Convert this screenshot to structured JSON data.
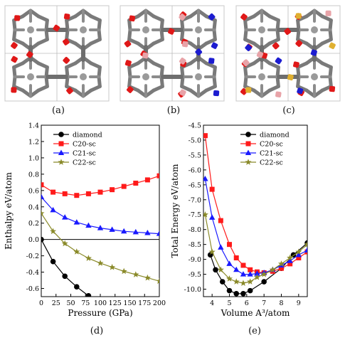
{
  "figure": {
    "captions": [
      "(a)",
      "(b)",
      "(c)",
      "(d)",
      "(e)"
    ]
  },
  "structure_panels": [
    {
      "label": "(a)",
      "atoms": [
        "grey-carbon",
        "red"
      ]
    },
    {
      "label": "(b)",
      "atoms": [
        "grey-carbon",
        "red",
        "blue",
        "pink"
      ]
    },
    {
      "label": "(c)",
      "atoms": [
        "grey-carbon",
        "red",
        "blue",
        "pink",
        "gold"
      ]
    }
  ],
  "colors": {
    "carbon": "#7a7a7a",
    "red": "#e01818",
    "blue": "#1c1cd0",
    "pink": "#e8a3a8",
    "gold": "#e0b030",
    "diamond": "#000000",
    "c20": "#ff1a1a",
    "c21": "#1a1aff",
    "c22": "#8a8a2a"
  },
  "chart_data": [
    {
      "type": "line",
      "panel": "(d)",
      "xlabel": "Pressure (GPa)",
      "ylabel": "Enthalpy eV/atom",
      "xlim": [
        0,
        200
      ],
      "ylim": [
        -0.7,
        1.4
      ],
      "xticks": [
        "0",
        "25",
        "50",
        "75",
        "100",
        "125",
        "150",
        "175",
        "200"
      ],
      "yticks": [
        "-0.6",
        "-0.4",
        "-0.2",
        "0.0",
        "0.2",
        "0.4",
        "0.6",
        "0.8",
        "1.0",
        "1.2",
        "1.4"
      ],
      "reference_line_y": 0,
      "legend_position": "top-left",
      "series": [
        {
          "name": "diamond",
          "marker": "circle",
          "color": "#000000",
          "x": [
            0,
            20,
            40,
            60,
            80
          ],
          "y": [
            0.0,
            -0.27,
            -0.45,
            -0.58,
            -0.69
          ]
        },
        {
          "name": "C20-sc",
          "marker": "square",
          "color": "#ff1a1a",
          "x": [
            0,
            20,
            40,
            60,
            80,
            100,
            120,
            140,
            160,
            180,
            200
          ],
          "y": [
            0.67,
            0.58,
            0.56,
            0.54,
            0.56,
            0.58,
            0.61,
            0.65,
            0.69,
            0.73,
            0.78
          ]
        },
        {
          "name": "C21-sc",
          "marker": "triangle",
          "color": "#1a1aff",
          "x": [
            0,
            20,
            40,
            60,
            80,
            100,
            120,
            140,
            160,
            180,
            200
          ],
          "y": [
            0.52,
            0.36,
            0.27,
            0.21,
            0.17,
            0.14,
            0.12,
            0.1,
            0.09,
            0.08,
            0.07
          ]
        },
        {
          "name": "C22-sc",
          "marker": "star",
          "color": "#8a8a2a",
          "x": [
            0,
            20,
            40,
            60,
            80,
            100,
            120,
            140,
            160,
            180,
            200
          ],
          "y": [
            0.32,
            0.1,
            -0.05,
            -0.15,
            -0.23,
            -0.29,
            -0.34,
            -0.39,
            -0.43,
            -0.47,
            -0.51
          ]
        }
      ]
    },
    {
      "type": "line",
      "panel": "(e)",
      "xlabel": "Volume A³/atom",
      "ylabel": "Total Energy eV/atom",
      "xlim": [
        3.5,
        9.5
      ],
      "ylim": [
        -10.25,
        -4.5
      ],
      "xticks": [
        "4",
        "5",
        "6",
        "7",
        "8",
        "9"
      ],
      "yticks": [
        "-4.5",
        "-5.0",
        "-5.5",
        "-6.0",
        "-6.5",
        "-7.0",
        "-7.5",
        "-8.0",
        "-8.5",
        "-9.0",
        "-9.5",
        "-10.0"
      ],
      "legend_position": "top-right",
      "series": [
        {
          "name": "diamond",
          "marker": "circle",
          "color": "#000000",
          "x": [
            3.9,
            4.2,
            4.6,
            5.0,
            5.4,
            5.8,
            6.2,
            7.0,
            8.0,
            8.7,
            9.5
          ],
          "y": [
            -8.85,
            -9.35,
            -9.75,
            -10.05,
            -10.15,
            -10.15,
            -10.05,
            -9.75,
            -9.3,
            -8.85,
            -8.45
          ]
        },
        {
          "name": "C20-sc",
          "marker": "square",
          "color": "#ff1a1a",
          "x": [
            3.6,
            4.0,
            4.5,
            5.0,
            5.4,
            5.8,
            6.2,
            6.6,
            7.0,
            7.5,
            8.0,
            8.5,
            9.0,
            9.5
          ],
          "y": [
            -4.85,
            -6.65,
            -7.7,
            -8.5,
            -8.95,
            -9.2,
            -9.35,
            -9.42,
            -9.45,
            -9.4,
            -9.3,
            -9.15,
            -8.95,
            -8.75
          ]
        },
        {
          "name": "C21-sc",
          "marker": "triangle",
          "color": "#1a1aff",
          "x": [
            3.6,
            4.0,
            4.5,
            5.0,
            5.4,
            5.8,
            6.2,
            6.6,
            7.0,
            7.5,
            8.0,
            8.5,
            9.0,
            9.5
          ],
          "y": [
            -6.3,
            -7.6,
            -8.6,
            -9.15,
            -9.35,
            -9.5,
            -9.5,
            -9.48,
            -9.45,
            -9.35,
            -9.2,
            -9.05,
            -8.85,
            -8.7
          ]
        },
        {
          "name": "C22-sc",
          "marker": "star",
          "color": "#8a8a2a",
          "x": [
            3.6,
            4.0,
            4.5,
            5.0,
            5.4,
            5.8,
            6.2,
            6.6,
            7.0,
            7.5,
            8.0,
            8.5,
            9.0,
            9.5
          ],
          "y": [
            -7.5,
            -8.75,
            -9.35,
            -9.65,
            -9.75,
            -9.8,
            -9.75,
            -9.6,
            -9.5,
            -9.35,
            -9.15,
            -8.95,
            -8.75,
            -8.5
          ]
        }
      ]
    }
  ]
}
